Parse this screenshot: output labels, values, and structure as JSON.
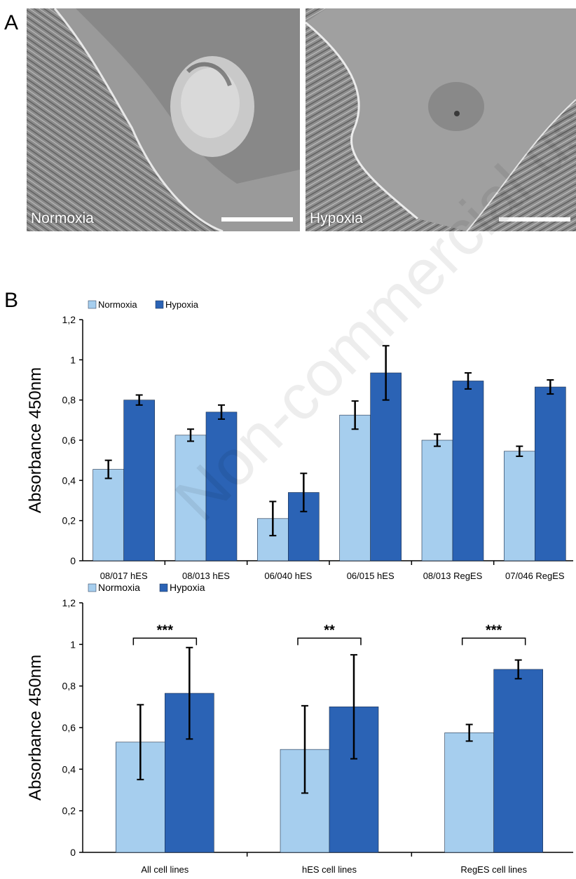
{
  "panels": {
    "a": {
      "letter": "A",
      "left_label": "Normoxia",
      "right_label": "Hypoxia"
    },
    "b": {
      "letter": "B"
    }
  },
  "watermark": "Non-commercial use only",
  "colors": {
    "normoxia": "#A6CEEE",
    "hypoxia": "#2B63B5",
    "axis": "#000000"
  },
  "chart_data": [
    {
      "type": "bar",
      "title": "",
      "xlabel": "",
      "ylabel": "Absorbance 450nm",
      "ylim": [
        0,
        1.2
      ],
      "yticks": [
        "0",
        "0,2",
        "0,4",
        "0,6",
        "0,8",
        "1",
        "1,2"
      ],
      "legend_position": "top-left",
      "categories": [
        "08/017 hES",
        "08/013 hES",
        "06/040 hES",
        "06/015 hES",
        "08/013 RegES",
        "07/046 RegES"
      ],
      "series": [
        {
          "name": "Normoxia",
          "values": [
            0.455,
            0.625,
            0.21,
            0.725,
            0.6,
            0.545
          ],
          "errors": [
            0.045,
            0.03,
            0.085,
            0.07,
            0.03,
            0.025
          ]
        },
        {
          "name": "Hypoxia",
          "values": [
            0.8,
            0.74,
            0.34,
            0.935,
            0.895,
            0.865
          ],
          "errors": [
            0.025,
            0.035,
            0.095,
            0.135,
            0.04,
            0.035
          ]
        }
      ]
    },
    {
      "type": "bar",
      "title": "",
      "xlabel": "",
      "ylabel": "Absorbance 450nm",
      "ylim": [
        0,
        1.2
      ],
      "yticks": [
        "0",
        "0,2",
        "0,4",
        "0,6",
        "0,8",
        "1",
        "1,2"
      ],
      "legend_position": "top-left",
      "categories": [
        "All cell lines",
        "hES cell lines",
        "RegES cell lines"
      ],
      "series": [
        {
          "name": "Normoxia",
          "values": [
            0.53,
            0.495,
            0.575
          ],
          "errors": [
            0.18,
            0.21,
            0.04
          ]
        },
        {
          "name": "Hypoxia",
          "values": [
            0.765,
            0.7,
            0.88
          ],
          "errors": [
            0.22,
            0.25,
            0.045
          ]
        }
      ],
      "significance": [
        "***",
        "**",
        "***"
      ]
    }
  ]
}
